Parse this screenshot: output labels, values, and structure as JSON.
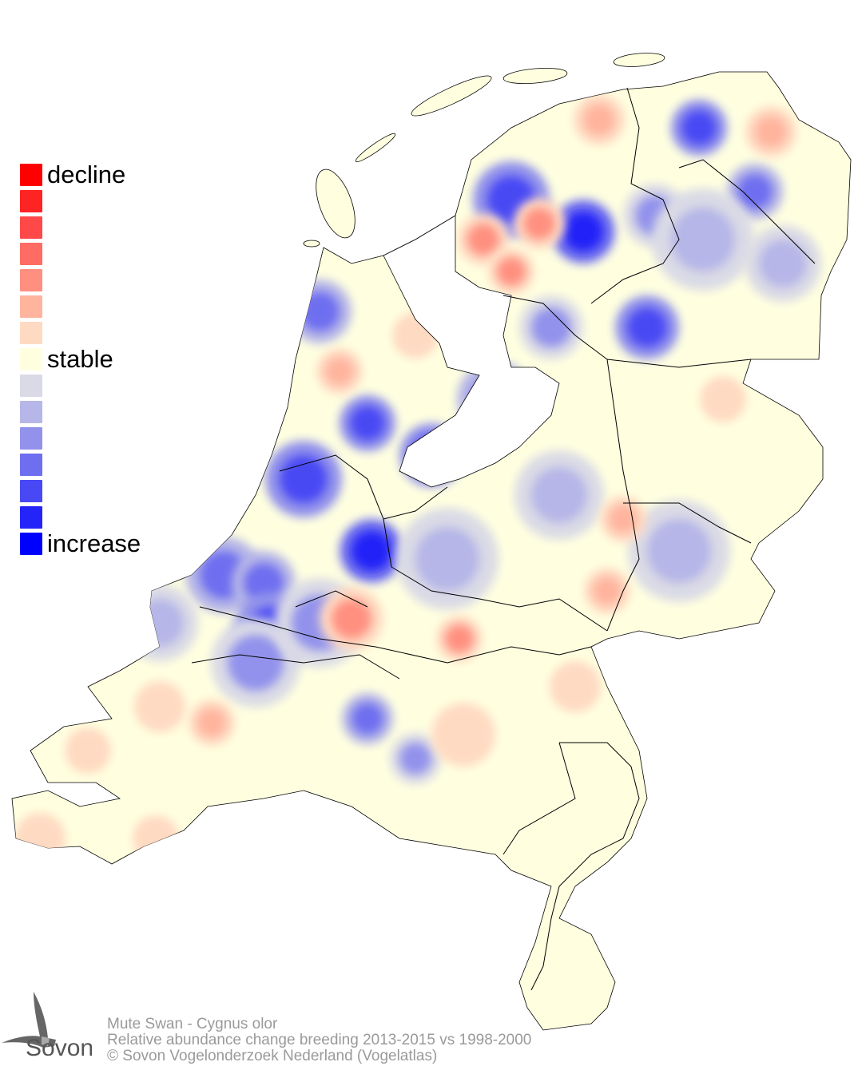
{
  "legend": {
    "labels": {
      "decline": "decline",
      "stable": "stable",
      "increase": "increase"
    },
    "colors": [
      "#ff0000",
      "#ff2424",
      "#ff4848",
      "#ff6c64",
      "#ff9080",
      "#ffb49e",
      "#ffdac2",
      "#ffffe0",
      "#dadae6",
      "#b6b6e8",
      "#9292ec",
      "#6e6ef0",
      "#4848f4",
      "#2424f8",
      "#0000ff"
    ]
  },
  "map": {
    "land_color": "#ffffe0",
    "border_color": "#000000",
    "water_color": "#ffffff"
  },
  "footer": {
    "line1": "Mute Swan - Cygnus olor",
    "line2": "Relative abundance change breeding 2013-2015 vs 1998-2000",
    "line3": "© Sovon Vogelonderzoek Nederland (Vogelatlas)"
  },
  "logo": {
    "text": "Sovon"
  }
}
